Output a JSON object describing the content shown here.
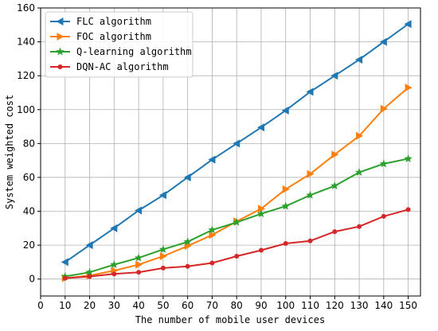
{
  "chart_data": {
    "type": "line",
    "title": "",
    "xlabel": "The number of mobile user devices",
    "ylabel": "System weighted cost",
    "xlim": [
      0,
      155
    ],
    "ylim": [
      -10,
      160
    ],
    "xticks": [
      0,
      10,
      20,
      30,
      40,
      50,
      60,
      70,
      80,
      90,
      100,
      110,
      120,
      130,
      140,
      150
    ],
    "yticks": [
      0,
      20,
      40,
      60,
      80,
      100,
      120,
      140,
      160
    ],
    "grid": true,
    "legend_position": "top-left",
    "x": [
      10,
      20,
      30,
      40,
      50,
      60,
      70,
      80,
      90,
      100,
      110,
      120,
      130,
      140,
      150
    ],
    "series": [
      {
        "name": "FLC algorithm",
        "color": "#1f77b4",
        "marker": "triangle-left",
        "values": [
          10,
          20,
          30,
          40.5,
          49.5,
          60,
          70.5,
          80,
          89.5,
          99.5,
          110.5,
          120,
          129.5,
          140,
          150.5
        ]
      },
      {
        "name": "FOC algorithm",
        "color": "#ff7f0e",
        "marker": "triangle-right",
        "values": [
          0.5,
          2,
          5,
          8.5,
          13.5,
          19.5,
          26,
          34,
          41.5,
          53,
          62,
          73.5,
          84.5,
          100.5,
          113
        ]
      },
      {
        "name": "Q-learning algorithm",
        "color": "#2ca02c",
        "marker": "star",
        "values": [
          1.5,
          4,
          8.5,
          12.5,
          17.5,
          22,
          29,
          33.5,
          38.5,
          43,
          49.5,
          55,
          63,
          68,
          71
        ]
      },
      {
        "name": "DQN-AC algorithm",
        "color": "#d62728",
        "marker": "circle",
        "values": [
          0.5,
          1.5,
          3,
          4,
          6.5,
          7.5,
          9.5,
          13.5,
          17,
          21,
          22.5,
          28,
          31,
          37,
          41
        ]
      }
    ]
  }
}
